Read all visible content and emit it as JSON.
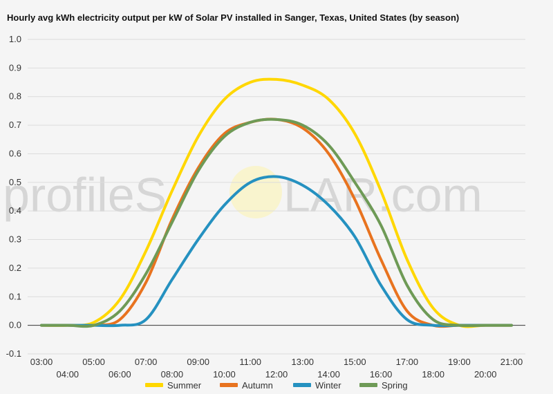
{
  "watermark": {
    "left": "profileS",
    "right": "LAR.com"
  },
  "chart_data": {
    "type": "line",
    "title": "Hourly avg kWh electricity output per kW of Solar PV installed in Sanger, Texas, United States (by season)",
    "xlabel": "",
    "ylabel": "",
    "ylim": [
      -0.1,
      1.0
    ],
    "yticks": [
      "-0.1",
      "0.0",
      "0.1",
      "0.2",
      "0.3",
      "0.4",
      "0.5",
      "0.6",
      "0.7",
      "0.8",
      "0.9",
      "1.0"
    ],
    "x": [
      "03:00",
      "04:00",
      "05:00",
      "06:00",
      "07:00",
      "08:00",
      "09:00",
      "10:00",
      "11:00",
      "12:00",
      "13:00",
      "14:00",
      "15:00",
      "16:00",
      "17:00",
      "18:00",
      "19:00",
      "20:00",
      "21:00"
    ],
    "grid": true,
    "legend_position": "bottom",
    "series": [
      {
        "name": "Summer",
        "color": "#ffd700",
        "values": [
          0.0,
          0.0,
          0.01,
          0.09,
          0.26,
          0.47,
          0.66,
          0.79,
          0.85,
          0.86,
          0.84,
          0.79,
          0.67,
          0.47,
          0.23,
          0.06,
          0.0,
          0.0,
          0.0
        ]
      },
      {
        "name": "Autumn",
        "color": "#e8731f",
        "values": [
          0.0,
          0.0,
          0.0,
          0.02,
          0.15,
          0.37,
          0.55,
          0.67,
          0.71,
          0.72,
          0.69,
          0.6,
          0.44,
          0.23,
          0.05,
          0.0,
          0.0,
          0.0,
          0.0
        ]
      },
      {
        "name": "Winter",
        "color": "#2591c0",
        "values": [
          0.0,
          0.0,
          0.0,
          0.0,
          0.02,
          0.16,
          0.3,
          0.42,
          0.5,
          0.52,
          0.49,
          0.42,
          0.31,
          0.14,
          0.02,
          0.0,
          0.0,
          0.0,
          0.0
        ]
      },
      {
        "name": "Spring",
        "color": "#6e9a56",
        "values": [
          0.0,
          0.0,
          0.0,
          0.05,
          0.18,
          0.36,
          0.54,
          0.66,
          0.71,
          0.72,
          0.7,
          0.63,
          0.5,
          0.35,
          0.14,
          0.02,
          0.0,
          0.0,
          0.0
        ]
      }
    ]
  }
}
